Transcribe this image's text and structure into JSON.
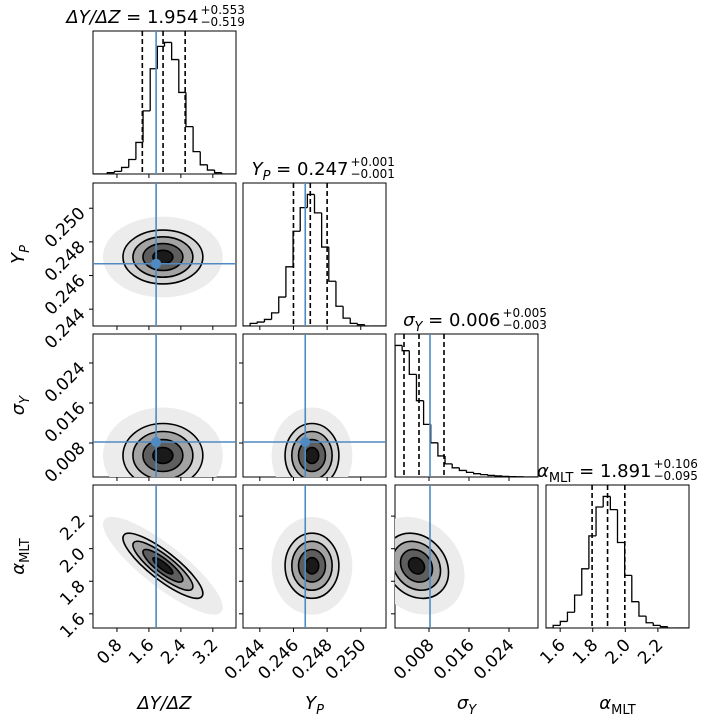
{
  "chart_data": {
    "type": "corner",
    "truth_color": "#4f8ac2",
    "line_color": "#000000",
    "cloud_color": "#ececec",
    "levels": [
      2,
      1.5,
      1,
      0.5
    ],
    "level_colors": [
      "#d4d4d4",
      "#a3a3a3",
      "#5e5e5e",
      "#1a1a1a"
    ],
    "params": [
      {
        "label": {
          "text": "ΔY/ΔZ"
        },
        "title": {
          "symbol": "ΔY/ΔZ",
          "eq": " = 1.954",
          "upper": "+0.553",
          "lower": "−0.519"
        },
        "range": [
          0.2,
          3.78
        ],
        "ticks": [
          0.8,
          1.6,
          2.4,
          3.2
        ],
        "quantiles": [
          1.435,
          1.954,
          2.507
        ],
        "truth": 1.78,
        "hist": {
          "bins": [
            0.2,
            0.379,
            0.558,
            0.737,
            0.916,
            1.095,
            1.274,
            1.453,
            1.632,
            1.811,
            1.99,
            2.169,
            2.348,
            2.527,
            2.706,
            2.885,
            3.064,
            3.243,
            3.422,
            3.601,
            3.78
          ],
          "counts": [
            0,
            0,
            0.01,
            0.02,
            0.05,
            0.11,
            0.24,
            0.48,
            0.8,
            0.97,
            1.0,
            0.87,
            0.62,
            0.36,
            0.17,
            0.07,
            0.03,
            0.01,
            0,
            0
          ]
        }
      },
      {
        "label": {
          "text": "Y",
          "sub": "P"
        },
        "title": {
          "symbol": "Y",
          "sub": "P",
          "eq": " = 0.247",
          "upper": "+0.001",
          "lower": "−0.001"
        },
        "range": [
          0.243,
          0.2515
        ],
        "ticks": [
          0.244,
          0.246,
          0.248,
          {
            "value": 0.25,
            "label": "0.250"
          }
        ],
        "quantiles": [
          0.246,
          0.247,
          0.248
        ],
        "truth": 0.2467,
        "hist": {
          "bins": [
            0.243,
            0.243425,
            0.24385,
            0.244275,
            0.2447,
            0.245125,
            0.24555,
            0.245975,
            0.2464,
            0.246825,
            0.24725,
            0.247675,
            0.2481,
            0.248525,
            0.24895,
            0.249375,
            0.2498,
            0.250225,
            0.25065,
            0.251075,
            0.2515
          ],
          "counts": [
            0,
            0.02,
            0.03,
            0.05,
            0.1,
            0.22,
            0.45,
            0.72,
            0.9,
            1.0,
            0.86,
            0.6,
            0.34,
            0.15,
            0.06,
            0.02,
            0.01,
            0,
            0,
            0
          ]
        }
      },
      {
        "label": {
          "text": "σ",
          "sub": "Y"
        },
        "title": {
          "symbol": "σ",
          "sub": "Y",
          "eq": " = 0.006",
          "upper": "+0.005",
          "lower": "−0.003"
        },
        "range": [
          0.0012,
          0.0298
        ],
        "ticks": [
          0.008,
          0.016,
          0.024
        ],
        "quantiles": [
          0.003,
          0.006,
          0.011
        ],
        "truth": 0.0082,
        "hist": {
          "bins": [
            0.0012,
            0.00263,
            0.00406,
            0.00549,
            0.00692,
            0.00835,
            0.00978,
            0.01121,
            0.01264,
            0.01407,
            0.0155,
            0.01693,
            0.01836,
            0.01979,
            0.02122,
            0.02265,
            0.02408,
            0.02551,
            0.02694,
            0.02837,
            0.0298
          ],
          "counts": [
            1.0,
            0.96,
            0.78,
            0.58,
            0.4,
            0.26,
            0.16,
            0.1,
            0.07,
            0.05,
            0.035,
            0.025,
            0.018,
            0.012,
            0.008,
            0.005,
            0.003,
            0.002,
            0,
            0
          ]
        }
      },
      {
        "label": {
          "text": "α",
          "sub": "MLT"
        },
        "title": {
          "symbol": "α",
          "sub": "MLT",
          "eq": " = 1.891",
          "upper": "+0.106",
          "lower": "−0.095"
        },
        "range": [
          1.513,
          2.391
        ],
        "ticks": [
          1.6,
          1.8,
          {
            "value": 2,
            "label": "2.0"
          },
          2.2
        ],
        "quantiles": [
          1.796,
          1.891,
          1.997
        ],
        "truth": null,
        "hist": {
          "bins": [
            1.513,
            1.5569,
            1.6008,
            1.6447,
            1.6886,
            1.7325,
            1.7764,
            1.8203,
            1.8642,
            1.9081,
            1.952,
            1.9959,
            2.0398,
            2.0837,
            2.1276,
            2.1715,
            2.2154,
            2.2593,
            2.3032,
            2.3471,
            2.391
          ],
          "counts": [
            0,
            0.02,
            0.05,
            0.12,
            0.25,
            0.45,
            0.7,
            0.92,
            1.0,
            0.9,
            0.65,
            0.4,
            0.2,
            0.09,
            0.04,
            0.02,
            0.01,
            0,
            0,
            0
          ]
        }
      }
    ],
    "pairs": [
      {
        "x": 0,
        "y": 1,
        "mean": [
          1.95,
          0.2471
        ],
        "sd": [
          0.5,
          0.0008
        ],
        "rho": 0
      },
      {
        "x": 0,
        "y": 2,
        "mean": [
          1.95,
          0.0055
        ],
        "sd": [
          0.5,
          0.0032
        ],
        "rho": 0
      },
      {
        "x": 1,
        "y": 2,
        "mean": [
          0.2471,
          0.0055
        ],
        "sd": [
          0.0008,
          0.0032
        ],
        "rho": 0
      },
      {
        "x": 0,
        "y": 3,
        "mean": [
          1.95,
          1.895
        ],
        "sd": [
          0.5,
          0.1
        ],
        "rho": -0.85
      },
      {
        "x": 1,
        "y": 3,
        "mean": [
          0.2471,
          1.895
        ],
        "sd": [
          0.0008,
          0.1
        ],
        "rho": 0
      },
      {
        "x": 2,
        "y": 3,
        "mean": [
          0.0055,
          1.895
        ],
        "sd": [
          0.0032,
          0.1
        ],
        "rho": -0.2
      }
    ]
  }
}
